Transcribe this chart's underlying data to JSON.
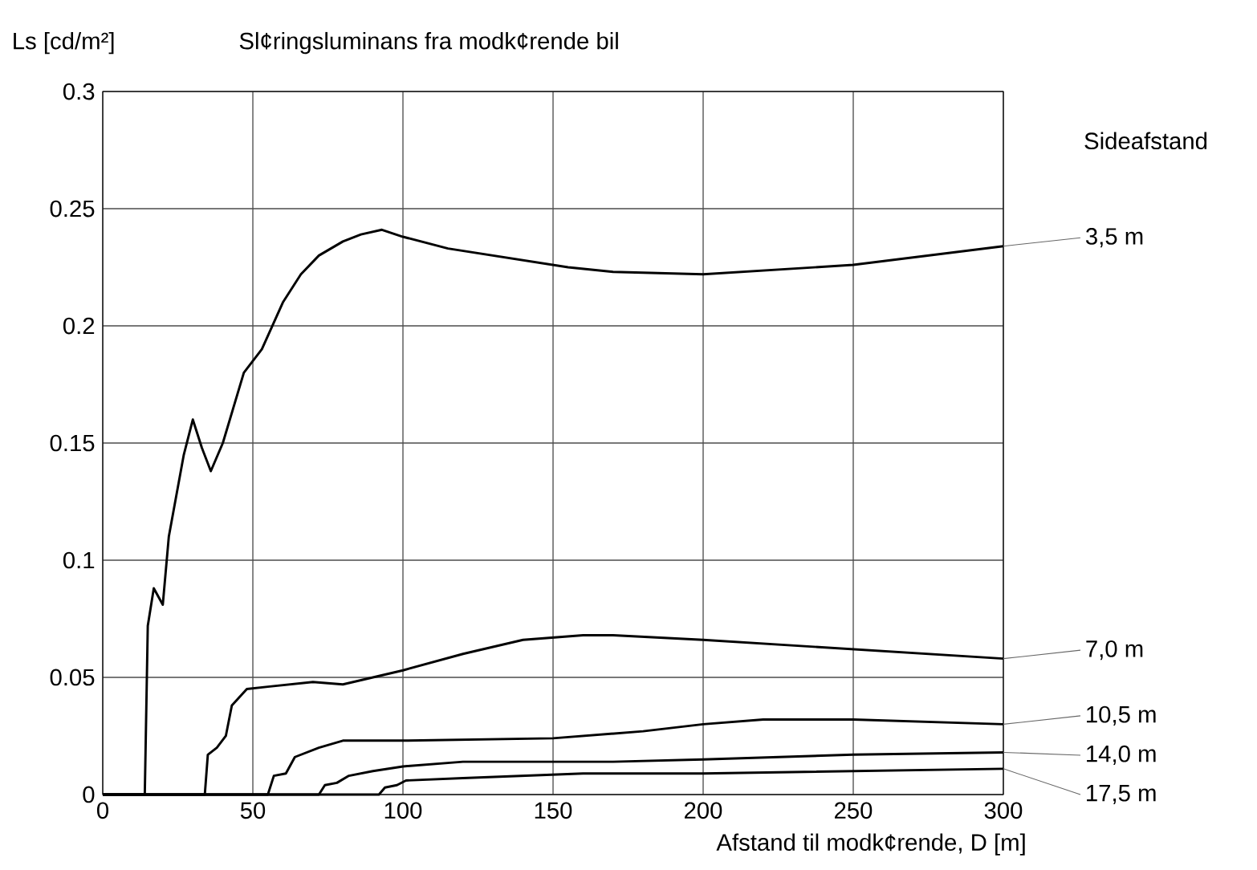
{
  "chart_data": {
    "type": "line",
    "title": "Sl¢ringsluminans fra modk¢rende bil",
    "ylabel": "Ls [cd/m²]",
    "xlabel": "Afstand til modk¢rende, D [m]",
    "legend_title": "Sideafstand",
    "legend": "right",
    "grid": true,
    "marker": "none",
    "line_style": "solid",
    "xlim": [
      0,
      300
    ],
    "ylim": [
      0,
      0.3
    ],
    "xticks": [
      0,
      50,
      100,
      150,
      200,
      250,
      300
    ],
    "yticks": [
      0,
      0.05,
      0.1,
      0.15,
      0.2,
      0.25,
      0.3
    ],
    "series": [
      {
        "name": "3,5 m",
        "color": "#000000",
        "x": [
          0,
          14,
          15,
          17,
          20,
          22,
          27,
          30,
          33,
          36,
          40,
          47,
          53,
          60,
          66,
          72,
          80,
          86,
          93,
          100,
          115,
          135,
          155,
          170,
          200,
          250,
          300
        ],
        "values": [
          0,
          0,
          0.072,
          0.088,
          0.081,
          0.11,
          0.145,
          0.16,
          0.148,
          0.138,
          0.15,
          0.18,
          0.19,
          0.21,
          0.222,
          0.23,
          0.236,
          0.239,
          0.241,
          0.238,
          0.233,
          0.229,
          0.225,
          0.223,
          0.222,
          0.226,
          0.234
        ]
      },
      {
        "name": "7,0 m",
        "color": "#000000",
        "x": [
          0,
          34,
          35,
          38,
          41,
          43,
          48,
          55,
          70,
          80,
          90,
          100,
          120,
          140,
          160,
          170,
          200,
          250,
          300
        ],
        "values": [
          0,
          0,
          0.017,
          0.02,
          0.025,
          0.038,
          0.045,
          0.046,
          0.048,
          0.047,
          0.05,
          0.053,
          0.06,
          0.066,
          0.068,
          0.068,
          0.066,
          0.062,
          0.058
        ]
      },
      {
        "name": "10,5 m",
        "color": "#000000",
        "x": [
          0,
          55,
          57,
          61,
          64,
          72,
          80,
          100,
          150,
          180,
          200,
          220,
          250,
          300
        ],
        "values": [
          0,
          0,
          0.008,
          0.009,
          0.016,
          0.02,
          0.023,
          0.023,
          0.024,
          0.027,
          0.03,
          0.032,
          0.032,
          0.03
        ]
      },
      {
        "name": "14,0 m",
        "color": "#000000",
        "x": [
          0,
          72,
          74,
          78,
          82,
          90,
          100,
          120,
          170,
          200,
          250,
          300
        ],
        "values": [
          0,
          0,
          0.004,
          0.005,
          0.008,
          0.01,
          0.012,
          0.014,
          0.014,
          0.015,
          0.017,
          0.018
        ]
      },
      {
        "name": "17,5 m",
        "color": "#000000",
        "x": [
          0,
          92,
          94,
          98,
          101,
          120,
          160,
          200,
          250,
          300
        ],
        "values": [
          0,
          0,
          0.003,
          0.004,
          0.006,
          0.007,
          0.009,
          0.009,
          0.01,
          0.011
        ]
      }
    ]
  }
}
